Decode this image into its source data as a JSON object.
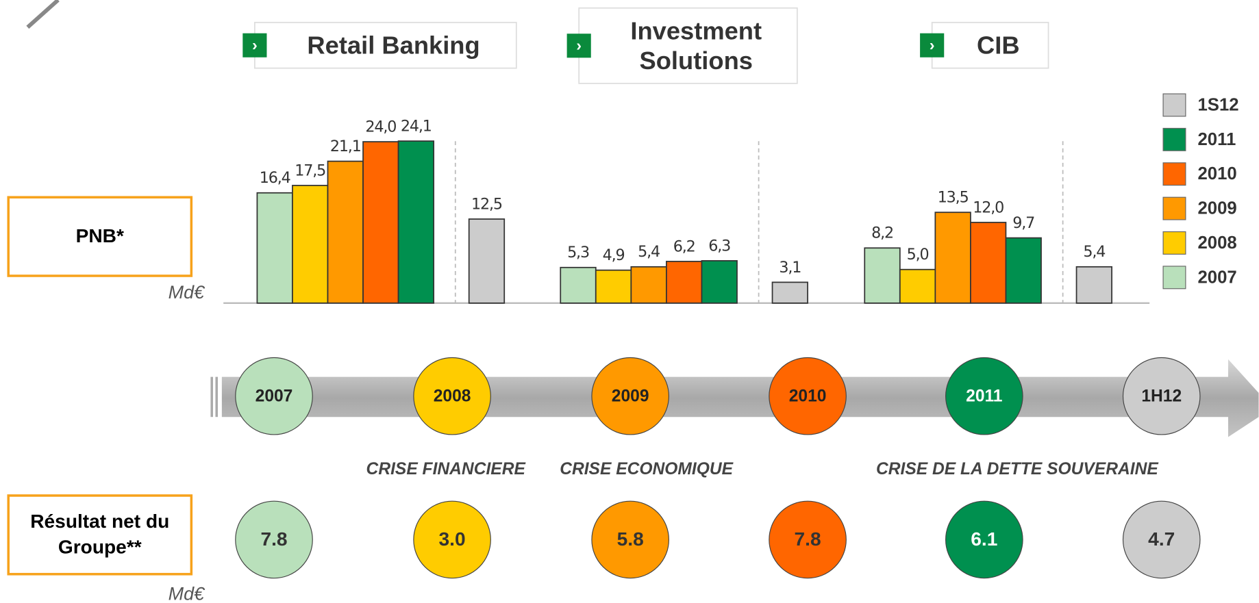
{
  "chart_data": {
    "type": "bar",
    "categories": [
      "Retail Banking",
      "Investment Solutions",
      "CIB"
    ],
    "series": [
      {
        "name": "2007",
        "color": "#b9e0bb",
        "values": [
          16.4,
          5.3,
          8.2
        ],
        "value_labels": [
          "16,4",
          "5,3",
          "8,2"
        ]
      },
      {
        "name": "2008",
        "color": "#ffcc00",
        "values": [
          17.5,
          4.9,
          5.0
        ],
        "value_labels": [
          "17,5",
          "4,9",
          "5,0"
        ]
      },
      {
        "name": "2009",
        "color": "#ff9900",
        "values": [
          21.1,
          5.4,
          13.5
        ],
        "value_labels": [
          "21,1",
          "5,4",
          "13,5"
        ]
      },
      {
        "name": "2010",
        "color": "#ff6600",
        "values": [
          24.0,
          6.2,
          12.0
        ],
        "value_labels": [
          "24,0",
          "6,2",
          "12,0"
        ]
      },
      {
        "name": "2011",
        "color": "#00904f",
        "values": [
          24.1,
          6.3,
          9.7
        ],
        "value_labels": [
          "24,1",
          "6,3",
          "9,7"
        ]
      },
      {
        "name": "1S12",
        "color": "#cccccc",
        "values": [
          12.5,
          3.1,
          5.4
        ],
        "value_labels": [
          "12,5",
          "3,1",
          "5,4"
        ]
      }
    ],
    "ylim": [
      0,
      26
    ],
    "y_label": "PNB*",
    "unit": "Md€"
  },
  "timeline": {
    "periods": [
      "2007",
      "2008",
      "2009",
      "2010",
      "2011",
      "1H12"
    ],
    "colors": [
      "#b9e0bb",
      "#ffcc00",
      "#ff9900",
      "#ff6600",
      "#00904f",
      "#cccccc"
    ],
    "crises": [
      "CRISE FINANCIERE",
      "CRISE ECONOMIQUE",
      "CRISE DE LA DETTE SOUVERAINE"
    ]
  },
  "net_result": {
    "label": "Résultat net du Groupe**",
    "unit": "Md€",
    "values": [
      7.8,
      3.0,
      5.8,
      7.8,
      6.1,
      4.7
    ],
    "value_labels": [
      "7.8",
      "3.0",
      "5.8",
      "7.8",
      "6.1",
      "4.7"
    ]
  }
}
